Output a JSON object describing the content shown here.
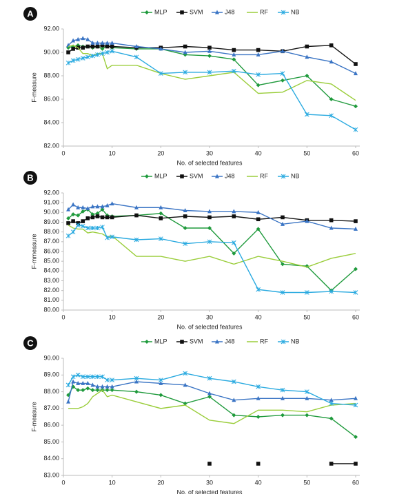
{
  "chart_data": [
    {
      "type": "line",
      "panel_label": "A",
      "y_label": "F-measure",
      "x_label": "No. of selected features",
      "x": [
        1,
        2,
        3,
        4,
        5,
        6,
        7,
        8,
        9,
        10,
        15,
        20,
        25,
        30,
        35,
        40,
        45,
        50,
        55,
        60
      ],
      "xlim": [
        0,
        60
      ],
      "xticks": [
        0,
        10,
        20,
        30,
        40,
        50,
        60
      ],
      "ylim": [
        82,
        92
      ],
      "yticks": [
        {
          "value": 82,
          "label": "82.00"
        },
        {
          "value": 84,
          "label": "84.00"
        },
        {
          "value": 86,
          "label": "86.00"
        },
        {
          "value": 88,
          "label": "88.00"
        },
        {
          "value": 90,
          "label": "90.00"
        },
        {
          "value": 92,
          "label": "92.00"
        }
      ],
      "series": [
        {
          "name": "MLP",
          "color": "#1f9a3c",
          "marker": "diamond",
          "values": [
            90.4,
            90.5,
            90.6,
            90.5,
            90.5,
            90.4,
            90.5,
            90.3,
            90.6,
            90.4,
            90.3,
            90.3,
            89.8,
            89.7,
            89.4,
            87.2,
            87.6,
            88.0,
            86.0,
            85.4
          ]
        },
        {
          "name": "SVM",
          "color": "#111111",
          "marker": "square",
          "values": [
            90.0,
            90.3,
            90.4,
            90.4,
            90.5,
            90.5,
            90.5,
            90.6,
            90.5,
            90.5,
            90.4,
            90.4,
            90.5,
            90.4,
            90.2,
            90.2,
            90.1,
            90.5,
            90.6,
            89.0
          ]
        },
        {
          "name": "J48",
          "color": "#3a74c4",
          "marker": "triangle",
          "values": [
            90.6,
            91.0,
            91.1,
            91.2,
            91.1,
            90.8,
            90.8,
            90.8,
            90.8,
            90.8,
            90.5,
            90.3,
            90.0,
            90.1,
            89.8,
            89.8,
            90.1,
            89.6,
            89.2,
            88.2
          ]
        },
        {
          "name": "RF",
          "color": "#9acd3a",
          "marker": "none",
          "values": [
            90.5,
            90.6,
            90.4,
            89.9,
            89.9,
            89.7,
            89.9,
            89.9,
            88.6,
            88.9,
            88.9,
            88.2,
            87.7,
            88.0,
            88.3,
            86.5,
            86.6,
            87.6,
            87.3,
            85.9
          ]
        },
        {
          "name": "NB",
          "color": "#2aaae0",
          "marker": "x",
          "values": [
            89.1,
            89.3,
            89.4,
            89.5,
            89.6,
            89.7,
            89.8,
            89.9,
            90.0,
            90.1,
            89.6,
            88.2,
            88.3,
            88.3,
            88.4,
            88.1,
            88.2,
            84.7,
            84.6,
            83.4
          ]
        }
      ]
    },
    {
      "type": "line",
      "panel_label": "B",
      "y_label": "F-mmeasure",
      "x_label": "No. of selected features",
      "x": [
        1,
        2,
        3,
        4,
        5,
        6,
        7,
        8,
        9,
        10,
        15,
        20,
        25,
        30,
        35,
        40,
        45,
        50,
        55,
        60
      ],
      "xlim": [
        0,
        60
      ],
      "xticks": [
        0,
        10,
        20,
        30,
        40,
        50,
        60
      ],
      "ylim": [
        80,
        92
      ],
      "yticks": [
        {
          "value": 80,
          "label": "80.00"
        },
        {
          "value": 81,
          "label": "81.00"
        },
        {
          "value": 82,
          "label": "82.00"
        },
        {
          "value": 83,
          "label": "83.00"
        },
        {
          "value": 84,
          "label": "84.00"
        },
        {
          "value": 85,
          "label": "85.00"
        },
        {
          "value": 86,
          "label": "86.00"
        },
        {
          "value": 87,
          "label": "87.00"
        },
        {
          "value": 88,
          "label": "88.00"
        },
        {
          "value": 89,
          "label": "89.00"
        },
        {
          "value": 90,
          "label": "90.00"
        },
        {
          "value": 91,
          "label": "91.00"
        },
        {
          "value": 92,
          "label": "92.00"
        }
      ],
      "series": [
        {
          "name": "MLP",
          "color": "#1f9a3c",
          "marker": "diamond",
          "values": [
            89.4,
            89.8,
            89.7,
            90.1,
            90.3,
            89.8,
            89.9,
            90.3,
            89.7,
            89.6,
            89.7,
            89.9,
            88.4,
            88.4,
            85.8,
            88.3,
            84.7,
            84.5,
            82.0,
            84.2
          ]
        },
        {
          "name": "SVM",
          "color": "#111111",
          "marker": "square",
          "values": [
            88.9,
            89.1,
            88.9,
            89.1,
            89.4,
            89.5,
            89.6,
            89.5,
            89.5,
            89.5,
            89.7,
            89.4,
            89.6,
            89.5,
            89.6,
            89.3,
            89.5,
            89.2,
            89.2,
            89.1
          ]
        },
        {
          "name": "J48",
          "color": "#3a74c4",
          "marker": "triangle",
          "values": [
            90.3,
            90.8,
            90.5,
            90.5,
            90.4,
            90.6,
            90.6,
            90.6,
            90.7,
            90.9,
            90.5,
            90.5,
            90.2,
            90.1,
            90.1,
            90.0,
            88.8,
            89.1,
            88.4,
            88.3
          ]
        },
        {
          "name": "RF",
          "color": "#9acd3a",
          "marker": "none",
          "values": [
            88.7,
            88.4,
            88.3,
            88.3,
            87.9,
            88.0,
            87.9,
            87.8,
            87.5,
            87.6,
            85.5,
            85.5,
            85.0,
            85.5,
            84.7,
            85.5,
            85.0,
            84.4,
            85.3,
            85.8
          ]
        },
        {
          "name": "NB",
          "color": "#2aaae0",
          "marker": "x",
          "values": [
            87.6,
            88.0,
            88.7,
            88.6,
            88.4,
            88.4,
            88.4,
            88.5,
            87.4,
            87.5,
            87.2,
            87.3,
            86.8,
            87.0,
            86.9,
            82.1,
            81.8,
            81.8,
            81.9,
            81.8
          ]
        }
      ]
    },
    {
      "type": "line",
      "panel_label": "C",
      "y_label": "F-measure",
      "x_label": "No. of selected features",
      "x": [
        1,
        2,
        3,
        4,
        5,
        6,
        7,
        8,
        9,
        10,
        15,
        20,
        25,
        30,
        35,
        40,
        45,
        50,
        55,
        60
      ],
      "xlim": [
        0,
        60
      ],
      "xticks": [
        0,
        10,
        20,
        30,
        40,
        50,
        60
      ],
      "ylim": [
        83,
        90
      ],
      "yticks": [
        {
          "value": 83,
          "label": "83.00"
        },
        {
          "value": 84,
          "label": "84.00"
        },
        {
          "value": 85,
          "label": "85.00"
        },
        {
          "value": 86,
          "label": "86.00"
        },
        {
          "value": 87,
          "label": "87.00"
        },
        {
          "value": 88,
          "label": "88.00"
        },
        {
          "value": 89,
          "label": "89.00"
        },
        {
          "value": 90,
          "label": "90.00"
        }
      ],
      "series": [
        {
          "name": "MLP",
          "color": "#1f9a3c",
          "marker": "diamond",
          "values": [
            87.8,
            88.3,
            88.1,
            88.1,
            88.2,
            88.1,
            88.1,
            88.1,
            88.1,
            88.1,
            88.0,
            87.8,
            87.3,
            87.7,
            86.6,
            86.5,
            86.6,
            86.6,
            86.4,
            85.3
          ]
        },
        {
          "name": "SVM",
          "color": "#111111",
          "marker": "square",
          "values": [
            null,
            null,
            null,
            null,
            null,
            null,
            null,
            null,
            null,
            null,
            null,
            null,
            null,
            83.7,
            null,
            83.7,
            null,
            null,
            83.7,
            83.7
          ]
        },
        {
          "name": "J48",
          "color": "#3a74c4",
          "marker": "triangle",
          "values": [
            87.4,
            88.6,
            88.5,
            88.5,
            88.5,
            88.4,
            88.3,
            88.3,
            88.3,
            88.3,
            88.6,
            88.5,
            88.4,
            87.9,
            87.5,
            87.6,
            87.6,
            87.6,
            87.5,
            87.6
          ]
        },
        {
          "name": "RF",
          "color": "#9acd3a",
          "marker": "none",
          "values": [
            87.0,
            87.0,
            87.0,
            87.1,
            87.3,
            87.7,
            87.9,
            88.1,
            87.7,
            87.8,
            87.4,
            87.0,
            87.2,
            86.3,
            86.1,
            86.9,
            86.9,
            86.8,
            87.2,
            87.3
          ]
        },
        {
          "name": "NB",
          "color": "#2aaae0",
          "marker": "x",
          "values": [
            88.4,
            88.9,
            89.0,
            88.9,
            88.9,
            88.9,
            88.9,
            88.9,
            88.7,
            88.7,
            88.8,
            88.7,
            89.1,
            88.8,
            88.6,
            88.3,
            88.1,
            88.0,
            87.3,
            87.2
          ]
        }
      ]
    }
  ]
}
